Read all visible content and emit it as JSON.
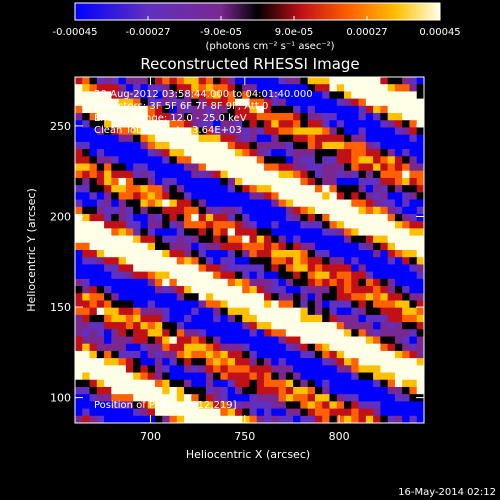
{
  "chart_data": {
    "type": "heatmap",
    "title": "Reconstructed RHESSI Image",
    "xlabel": "Heliocentric X (arcsec)",
    "ylabel": "Heliocentric Y (arcsec)",
    "xlim": [
      660,
      845
    ],
    "ylim": [
      86,
      277
    ],
    "x_ticks": [
      700,
      750,
      800
    ],
    "y_ticks": [
      100,
      150,
      200,
      250
    ],
    "colorbar": {
      "unit_label": "(photons cm⁻² s⁻¹ asec⁻²)",
      "range": [
        -0.00045,
        0.00045
      ],
      "ticks": [
        -0.00045,
        -0.00027,
        -9e-05,
        9e-05,
        0.00027,
        0.00045
      ],
      "tick_labels": [
        "-0.00045",
        "-0.00027",
        "-9.0e-05",
        "9.0e-05",
        "0.00027",
        "0.00045"
      ],
      "colors": [
        "#0000ff",
        "#6030c0",
        "#7a2890",
        "#000000",
        "#c01018",
        "#ff6000",
        "#ffc000",
        "#ffffe8"
      ]
    },
    "annotations": {
      "time_range": "30-Aug-2012 03:58:44.000 to 04:01:40.000",
      "detectors": "Detectors: 3F 5F 6F 7F 8F 9F, Att 0",
      "energy": "Energy Range: 12.0 - 25.0 keV",
      "clean": "Clean      Total counts: 3.64E+03",
      "peak": "Position of Peak = [812,219]"
    },
    "peak_position": [
      812,
      219
    ],
    "footer_date": "16-May-2014 02:12"
  }
}
